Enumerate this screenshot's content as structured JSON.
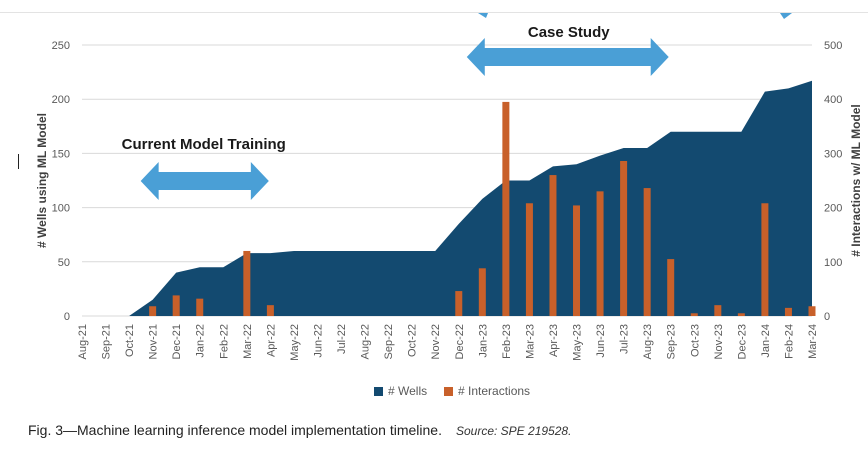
{
  "caption": {
    "figure": "Fig. 3—Machine learning inference model implementation timeline.",
    "source": "Source: SPE 219528."
  },
  "colors": {
    "wells": "#134a70",
    "interactions": "#c8602a",
    "arrow": "#4a9fd6",
    "grid": "#d9d9d9",
    "axis_text": "#595959"
  },
  "chart_data": {
    "type": "area",
    "title": "",
    "categories": [
      "Aug-21",
      "Sep-21",
      "Oct-21",
      "Nov-21",
      "Dec-21",
      "Jan-22",
      "Feb-22",
      "Mar-22",
      "Apr-22",
      "May-22",
      "Jun-22",
      "Jul-22",
      "Aug-22",
      "Sep-22",
      "Oct-22",
      "Nov-22",
      "Dec-22",
      "Jan-23",
      "Feb-23",
      "Mar-23",
      "Apr-23",
      "May-23",
      "Jun-23",
      "Jul-23",
      "Aug-23",
      "Sep-23",
      "Oct-23",
      "Nov-23",
      "Dec-23",
      "Jan-24",
      "Feb-24",
      "Mar-24"
    ],
    "ylabel": "# Wells using ML Model",
    "y2label": "# Interactions w/ ML Model",
    "ylim": [
      0,
      250
    ],
    "y2lim": [
      0,
      500
    ],
    "yticks": [
      "0",
      "50",
      "100",
      "150",
      "200",
      "250"
    ],
    "y2ticks": [
      "0",
      "100",
      "200",
      "300",
      "400",
      "500"
    ],
    "series": [
      {
        "name": "# Wells",
        "type": "area",
        "axis": "left",
        "values": [
          0,
          0,
          0,
          15,
          40,
          45,
          45,
          58,
          58,
          60,
          60,
          60,
          60,
          60,
          60,
          60,
          85,
          108,
          125,
          125,
          138,
          140,
          148,
          155,
          155,
          170,
          170,
          170,
          170,
          207,
          210,
          217
        ]
      },
      {
        "name": "# Interactions",
        "type": "bar",
        "axis": "right",
        "values": [
          0,
          0,
          0,
          18,
          38,
          32,
          0,
          120,
          20,
          0,
          0,
          0,
          0,
          0,
          0,
          0,
          46,
          88,
          395,
          208,
          260,
          204,
          230,
          286,
          236,
          105,
          5,
          20,
          5,
          208,
          15,
          18
        ]
      }
    ],
    "legend": [
      "# Wells",
      "# Interactions"
    ],
    "legend_position": "bottom",
    "annotations": [
      {
        "text": "Current Model Training",
        "from": "Nov-21",
        "to": "Mar-22"
      },
      {
        "text": "Case Study",
        "from": "Dec-22",
        "to": "Sep-23"
      }
    ]
  }
}
